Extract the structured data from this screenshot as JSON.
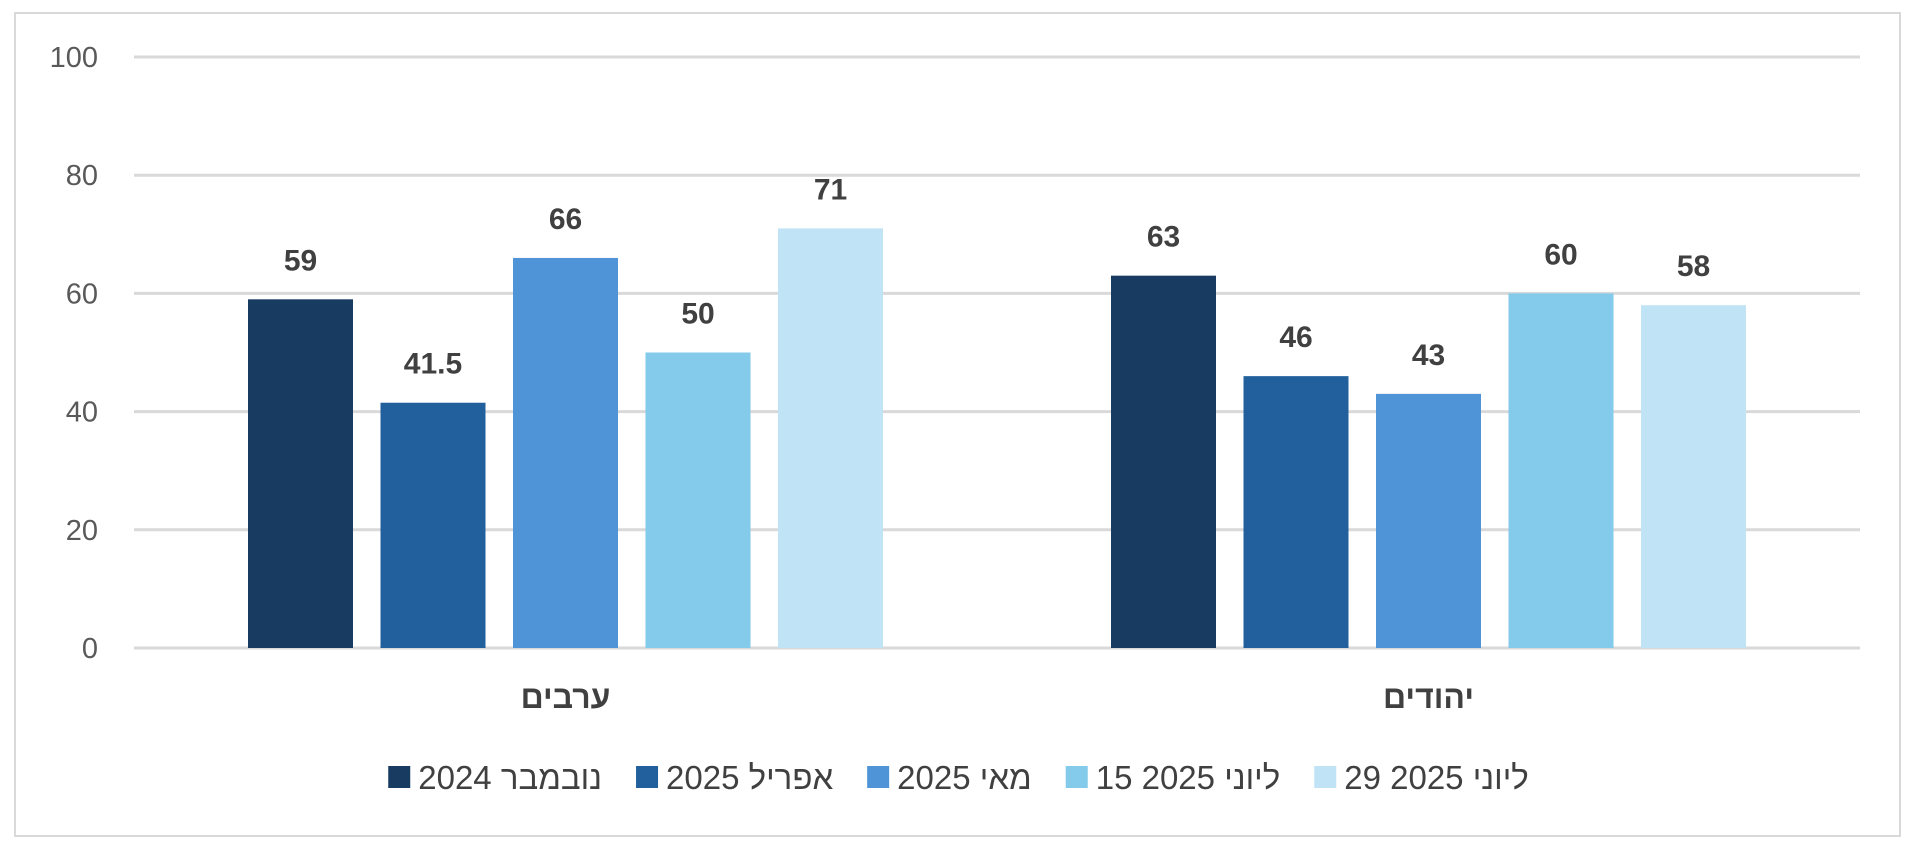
{
  "chart_data": {
    "type": "bar",
    "categories": [
      "ערבים",
      "יהודים"
    ],
    "series": [
      {
        "name": "נובמבר 2024",
        "values": [
          59,
          63
        ],
        "color": "#173b61"
      },
      {
        "name": "אפריל 2025",
        "values": [
          41.5,
          46
        ],
        "color": "#21609c"
      },
      {
        "name": "מאי 2025",
        "values": [
          66,
          43
        ],
        "color": "#4f94d6"
      },
      {
        "name": "15 ליוני 2025",
        "values": [
          50,
          60
        ],
        "color": "#83caeb"
      },
      {
        "name": "29 ליוני 2025",
        "values": [
          71,
          58
        ],
        "color": "#c0e4f5"
      }
    ],
    "ylim": [
      0,
      100
    ],
    "yticks": [
      0,
      20,
      40,
      60,
      80,
      100
    ],
    "grid": true,
    "legend": "bottom",
    "data_labels": true,
    "title": "",
    "xlabel": "",
    "ylabel": ""
  }
}
